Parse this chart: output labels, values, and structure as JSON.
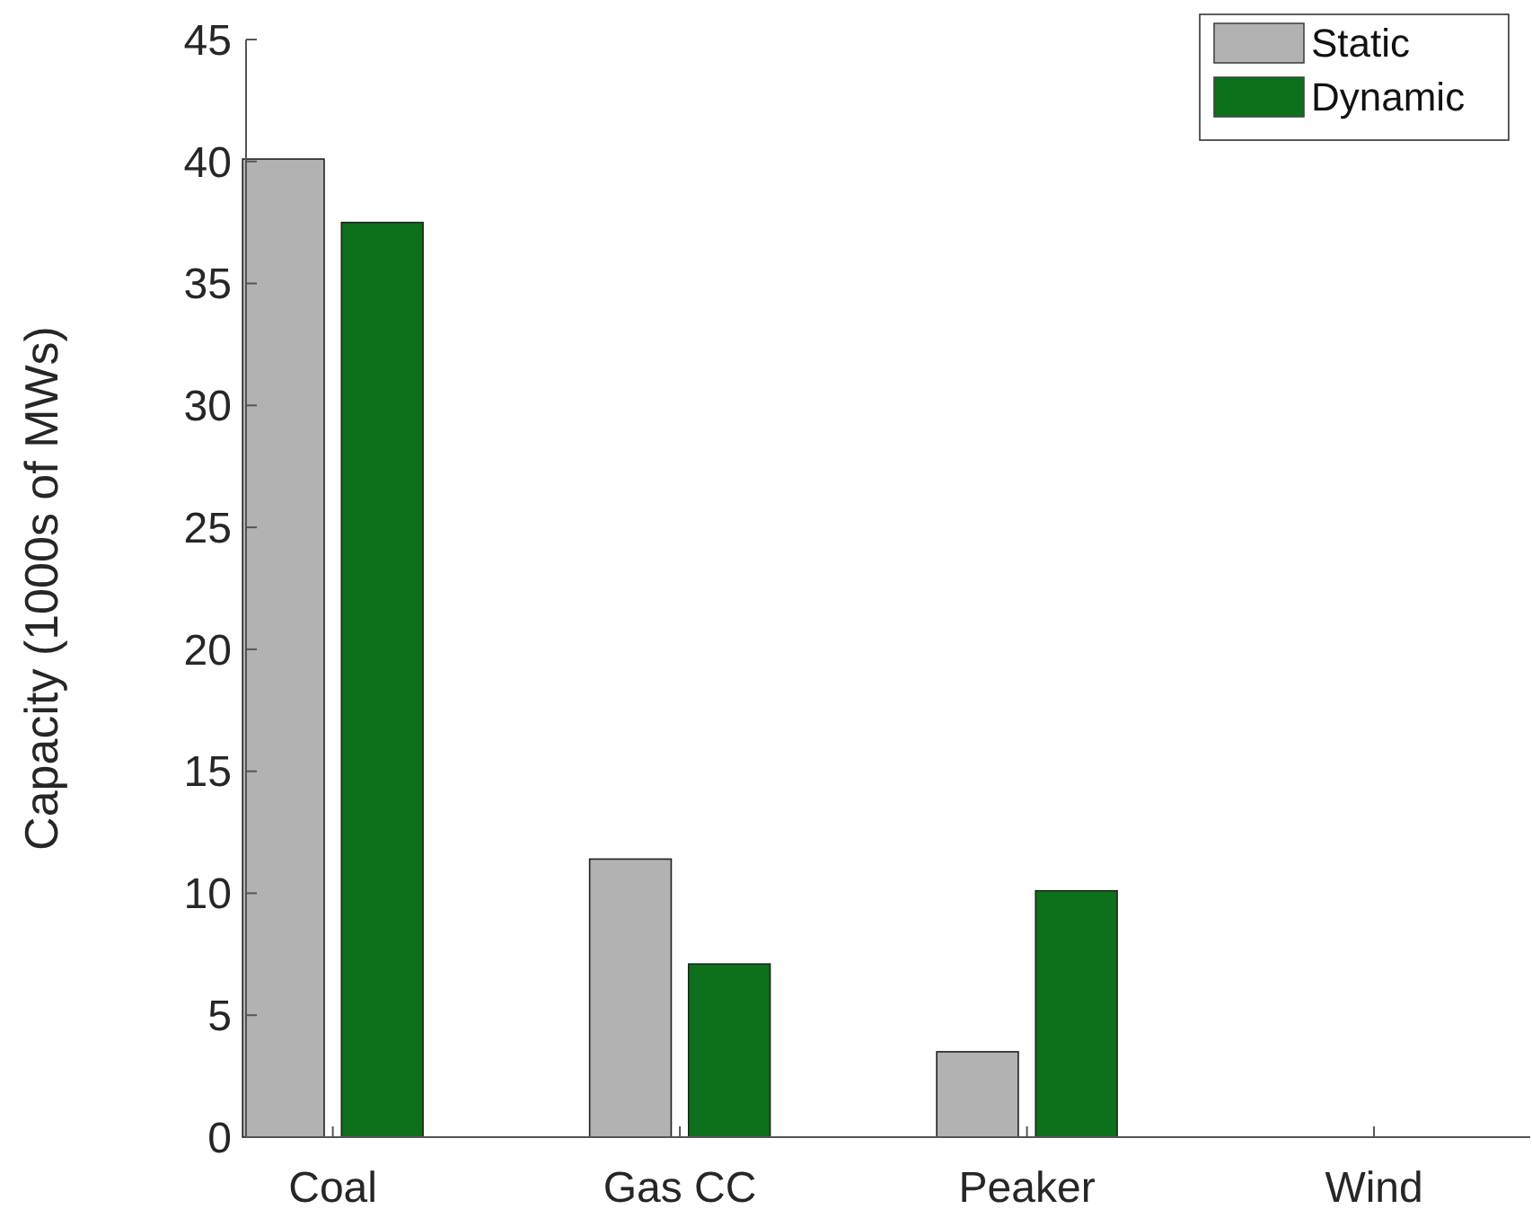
{
  "chart_data": {
    "type": "bar",
    "ylabel": "Capacity (1000s of MWs)",
    "categories": [
      "Coal",
      "Gas CC",
      "Peaker",
      "Wind"
    ],
    "series": [
      {
        "name": "Static",
        "color": "#b2b2b2",
        "values": [
          40.1,
          11.4,
          3.5,
          0
        ]
      },
      {
        "name": "Dynamic",
        "color": "#0c711a",
        "values": [
          37.5,
          7.1,
          10.1,
          0
        ]
      }
    ],
    "ylim": [
      0,
      45
    ],
    "yticks": [
      0,
      5,
      10,
      15,
      20,
      25,
      30,
      35,
      40,
      45
    ],
    "grid": false,
    "legend": "top right"
  }
}
